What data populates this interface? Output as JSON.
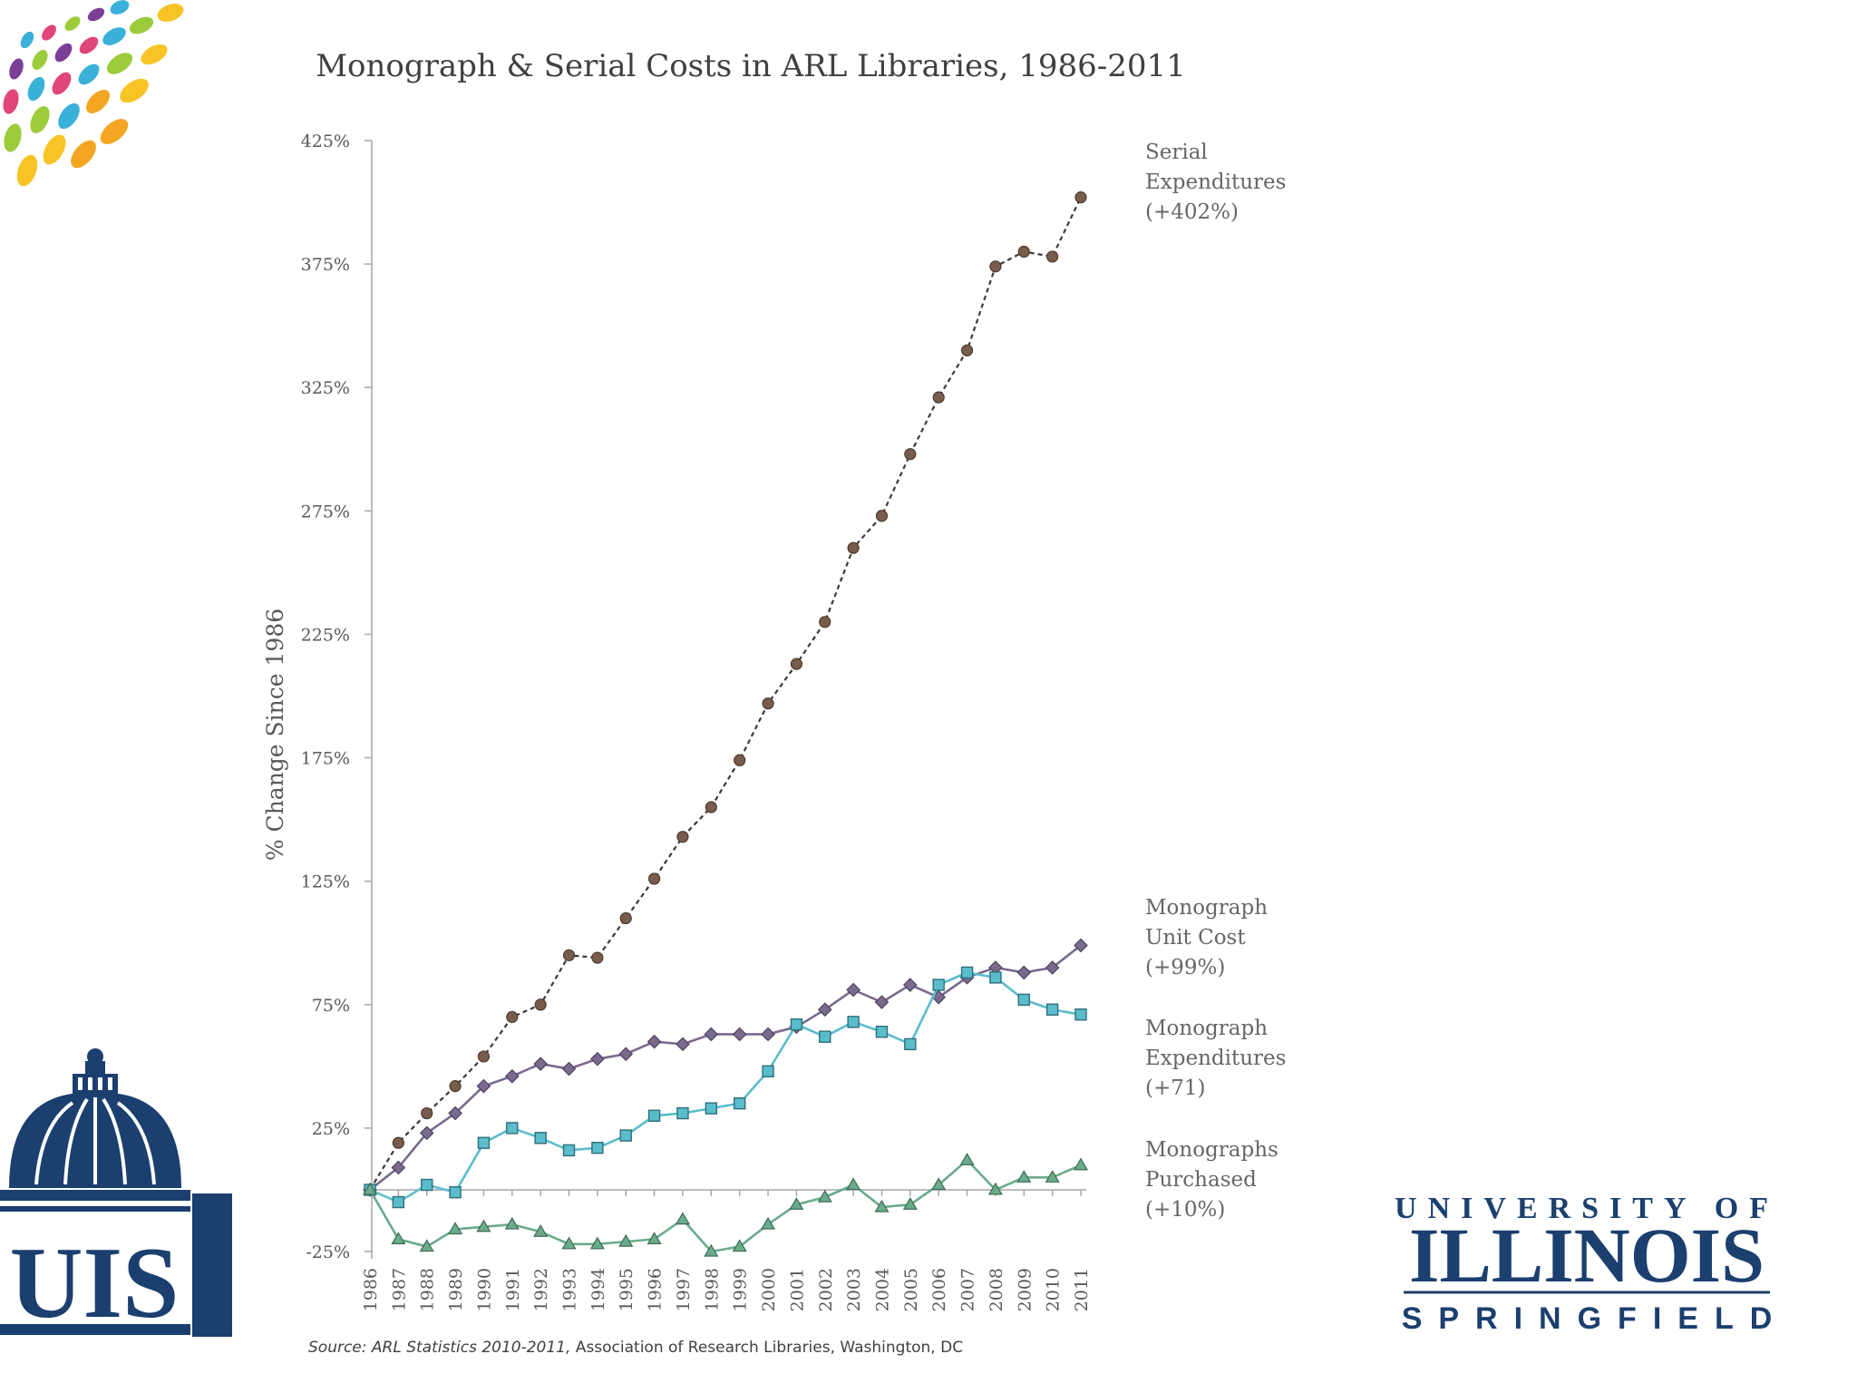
{
  "slide": {
    "source_prefix": "Source: ",
    "source_italic": "ARL Statistics 2010-2011,",
    "source_rest": " Association of Research Libraries, Washington, DC"
  },
  "logos": {
    "uis_text": "UIS",
    "illinois_top": "UNIVERSITY OF",
    "illinois_main": "ILLINOIS",
    "illinois_bottom": "SPRINGFIELD"
  },
  "colors": {
    "serial": "#7a5c4c",
    "monograph_unit_cost": "#7a6a8e",
    "monograph_expenditures": "#5bbccc",
    "monographs_purchased": "#6aab8c",
    "axis": "#a6a6a6",
    "brand_navy": "#1b3f6e"
  },
  "chart_data": {
    "type": "line",
    "title": "Monograph & Serial Costs in ARL Libraries, 1986-2011",
    "ylabel": "% Change Since 1986",
    "xlabel": "",
    "ylim": [
      -25,
      425
    ],
    "yticks": [
      -25,
      25,
      75,
      125,
      175,
      225,
      275,
      325,
      375,
      425
    ],
    "ytick_labels": [
      "-25%",
      "25%",
      "75%",
      "125%",
      "175%",
      "225%",
      "275%",
      "325%",
      "375%",
      "425%"
    ],
    "categories": [
      "1986",
      "1987",
      "1988",
      "1989",
      "1990",
      "1991",
      "1992",
      "1993",
      "1994",
      "1995",
      "1996",
      "1997",
      "1998",
      "1999",
      "2000",
      "2001",
      "2002",
      "2003",
      "2004",
      "2005",
      "2006",
      "2007",
      "2008",
      "2009",
      "2010",
      "2011"
    ],
    "series": [
      {
        "key": "serial",
        "name": "Serial Expenditures",
        "label_lines": [
          "Serial",
          "Expenditures",
          "(+402%)"
        ],
        "marker": "circle",
        "dashed": true,
        "values": [
          0,
          19,
          31,
          42,
          54,
          70,
          75,
          95,
          94,
          110,
          126,
          143,
          155,
          174,
          197,
          213,
          230,
          260,
          273,
          298,
          321,
          340,
          374,
          380,
          378,
          402
        ]
      },
      {
        "key": "monograph_unit_cost",
        "name": "Monograph Unit Cost",
        "label_lines": [
          "Monograph",
          "Unit Cost",
          "(+99%)"
        ],
        "marker": "diamond",
        "dashed": false,
        "values": [
          0,
          9,
          23,
          31,
          42,
          46,
          51,
          49,
          53,
          55,
          60,
          59,
          63,
          63,
          63,
          66,
          73,
          81,
          76,
          83,
          78,
          86,
          90,
          88,
          90,
          99
        ]
      },
      {
        "key": "monograph_expenditures",
        "name": "Monograph Expenditures",
        "label_lines": [
          "Monograph",
          "Expenditures",
          "(+71)"
        ],
        "marker": "square",
        "dashed": false,
        "values": [
          0,
          -5,
          2,
          -1,
          19,
          25,
          21,
          16,
          17,
          22,
          30,
          31,
          33,
          35,
          48,
          67,
          62,
          68,
          64,
          59,
          83,
          88,
          86,
          77,
          73,
          71
        ]
      },
      {
        "key": "monographs_purchased",
        "name": "Monographs Purchased",
        "label_lines": [
          "Monographs",
          "Purchased",
          "(+10%)"
        ],
        "marker": "triangle",
        "dashed": false,
        "values": [
          0,
          -20,
          -23,
          -16,
          -15,
          -14,
          -17,
          -22,
          -22,
          -21,
          -20,
          -12,
          -25,
          -23,
          -14,
          -6,
          -3,
          2,
          -7,
          -6,
          2,
          12,
          0,
          5,
          5,
          10
        ]
      }
    ]
  }
}
